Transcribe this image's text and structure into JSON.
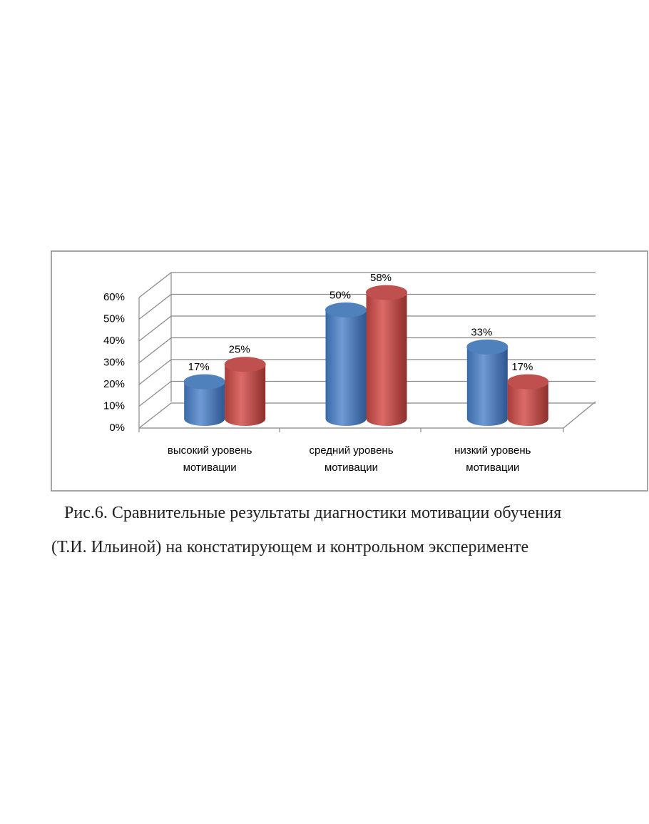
{
  "chart_data": {
    "type": "bar3d",
    "categories": [
      "высокий уровень мотивации",
      "средний уровень мотивации",
      "низкий уровень мотивации"
    ],
    "series": [
      {
        "color": "#4f81bd",
        "values": [
          17,
          50,
          33
        ],
        "value_labels": [
          "17%",
          "50%",
          "33%"
        ]
      },
      {
        "color": "#c0504d",
        "values": [
          25,
          58,
          17
        ],
        "value_labels": [
          "25%",
          "58%",
          "17%"
        ]
      }
    ],
    "ylim": [
      0,
      60
    ],
    "yticks": [
      {
        "value": 0,
        "label": "0%"
      },
      {
        "value": 10,
        "label": "10%"
      },
      {
        "value": 20,
        "label": "20%"
      },
      {
        "value": 30,
        "label": "30%"
      },
      {
        "value": 40,
        "label": "40%"
      },
      {
        "value": 50,
        "label": "50%"
      },
      {
        "value": 60,
        "label": "60%"
      }
    ],
    "grid": true
  },
  "caption": [
    "Рис.6. Сравнительные результаты диагностики мотивации обучения",
    "(Т.И. Ильиной) на констатирующем и контрольном эксперименте"
  ]
}
